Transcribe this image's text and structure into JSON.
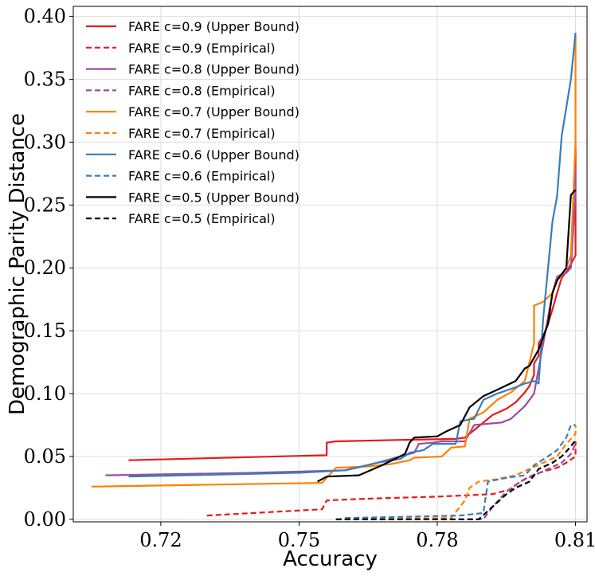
{
  "chart_data": {
    "type": "line",
    "title": "",
    "xlabel": "Accuracy",
    "ylabel": "Demographic Parity Distance",
    "xlim": [
      0.701,
      0.8125
    ],
    "ylim": [
      -0.002,
      0.408
    ],
    "xticks": [
      0.72,
      0.75,
      0.78,
      0.81
    ],
    "xtick_labels": [
      "0.72",
      "0.75",
      "0.78",
      "0.81"
    ],
    "yticks": [
      0.0,
      0.05,
      0.1,
      0.15,
      0.2,
      0.25,
      0.3,
      0.35,
      0.4
    ],
    "ytick_labels": [
      "0.00",
      "0.05",
      "0.10",
      "0.15",
      "0.20",
      "0.25",
      "0.30",
      "0.35",
      "0.40"
    ],
    "grid": true,
    "legend_position": "top-left",
    "series": [
      {
        "name": "FARE c=0.9 (Upper Bound)",
        "color": "#e41a1c",
        "dash": "solid",
        "points": [
          [
            0.713,
            0.047
          ],
          [
            0.756,
            0.051
          ],
          [
            0.756,
            0.061
          ],
          [
            0.758,
            0.062
          ],
          [
            0.77,
            0.063
          ],
          [
            0.784,
            0.064
          ],
          [
            0.786,
            0.065
          ],
          [
            0.792,
            0.083
          ],
          [
            0.795,
            0.088
          ],
          [
            0.797,
            0.093
          ],
          [
            0.799,
            0.101
          ],
          [
            0.8,
            0.106
          ],
          [
            0.801,
            0.115
          ],
          [
            0.801,
            0.124
          ],
          [
            0.802,
            0.13
          ],
          [
            0.802,
            0.14
          ],
          [
            0.803,
            0.146
          ],
          [
            0.804,
            0.155
          ],
          [
            0.805,
            0.167
          ],
          [
            0.806,
            0.18
          ],
          [
            0.807,
            0.192
          ],
          [
            0.808,
            0.197
          ],
          [
            0.809,
            0.203
          ],
          [
            0.81,
            0.21
          ],
          [
            0.81,
            0.3
          ]
        ]
      },
      {
        "name": "FARE c=0.9 (Empirical)",
        "color": "#e41a1c",
        "dash": "dashed",
        "points": [
          [
            0.73,
            0.003
          ],
          [
            0.755,
            0.008
          ],
          [
            0.756,
            0.015
          ],
          [
            0.762,
            0.016
          ],
          [
            0.77,
            0.017
          ],
          [
            0.78,
            0.018
          ],
          [
            0.786,
            0.019
          ],
          [
            0.792,
            0.02
          ],
          [
            0.796,
            0.024
          ],
          [
            0.798,
            0.03
          ],
          [
            0.8,
            0.034
          ],
          [
            0.803,
            0.038
          ],
          [
            0.806,
            0.041
          ],
          [
            0.808,
            0.045
          ],
          [
            0.81,
            0.05
          ],
          [
            0.81,
            0.062
          ]
        ]
      },
      {
        "name": "FARE c=0.8 (Upper Bound)",
        "color": "#984ea3",
        "dash": "solid",
        "points": [
          [
            0.708,
            0.035
          ],
          [
            0.74,
            0.037
          ],
          [
            0.76,
            0.039
          ],
          [
            0.765,
            0.043
          ],
          [
            0.77,
            0.048
          ],
          [
            0.775,
            0.053
          ],
          [
            0.776,
            0.06
          ],
          [
            0.779,
            0.061
          ],
          [
            0.781,
            0.062
          ],
          [
            0.786,
            0.062
          ],
          [
            0.788,
            0.075
          ],
          [
            0.794,
            0.077
          ],
          [
            0.796,
            0.08
          ],
          [
            0.799,
            0.09
          ],
          [
            0.801,
            0.1
          ],
          [
            0.802,
            0.12
          ],
          [
            0.803,
            0.14
          ],
          [
            0.804,
            0.16
          ],
          [
            0.805,
            0.18
          ],
          [
            0.806,
            0.193
          ],
          [
            0.807,
            0.195
          ],
          [
            0.808,
            0.196
          ],
          [
            0.809,
            0.2
          ],
          [
            0.81,
            0.26
          ],
          [
            0.81,
            0.28
          ]
        ]
      },
      {
        "name": "FARE c=0.8 (Empirical)",
        "color": "#984ea3",
        "dash": "dashed",
        "points": [
          [
            0.758,
            0.0
          ],
          [
            0.79,
            0.0
          ],
          [
            0.792,
            0.01
          ],
          [
            0.795,
            0.022
          ],
          [
            0.798,
            0.03
          ],
          [
            0.801,
            0.035
          ],
          [
            0.804,
            0.04
          ],
          [
            0.807,
            0.045
          ],
          [
            0.809,
            0.052
          ],
          [
            0.81,
            0.06
          ]
        ]
      },
      {
        "name": "FARE c=0.7 (Upper Bound)",
        "color": "#ff7f00",
        "dash": "solid",
        "points": [
          [
            0.705,
            0.026
          ],
          [
            0.755,
            0.029
          ],
          [
            0.758,
            0.041
          ],
          [
            0.765,
            0.042
          ],
          [
            0.77,
            0.044
          ],
          [
            0.774,
            0.047
          ],
          [
            0.775,
            0.049
          ],
          [
            0.781,
            0.05
          ],
          [
            0.783,
            0.057
          ],
          [
            0.786,
            0.058
          ],
          [
            0.787,
            0.08
          ],
          [
            0.79,
            0.085
          ],
          [
            0.793,
            0.095
          ],
          [
            0.796,
            0.101
          ],
          [
            0.799,
            0.11
          ],
          [
            0.8,
            0.125
          ],
          [
            0.801,
            0.14
          ],
          [
            0.801,
            0.17
          ],
          [
            0.803,
            0.173
          ],
          [
            0.805,
            0.18
          ],
          [
            0.806,
            0.19
          ],
          [
            0.808,
            0.2
          ],
          [
            0.809,
            0.21
          ],
          [
            0.81,
            0.3
          ],
          [
            0.81,
            0.385
          ]
        ]
      },
      {
        "name": "FARE c=0.7 (Empirical)",
        "color": "#ff7f00",
        "dash": "dashed",
        "points": [
          [
            0.758,
            0.0
          ],
          [
            0.783,
            0.001
          ],
          [
            0.786,
            0.015
          ],
          [
            0.787,
            0.025
          ],
          [
            0.789,
            0.03
          ],
          [
            0.793,
            0.032
          ],
          [
            0.797,
            0.035
          ],
          [
            0.8,
            0.04
          ],
          [
            0.803,
            0.045
          ],
          [
            0.806,
            0.05
          ],
          [
            0.808,
            0.06
          ],
          [
            0.81,
            0.068
          ],
          [
            0.81,
            0.075
          ]
        ]
      },
      {
        "name": "FARE c=0.6 (Upper Bound)",
        "color": "#377eb8",
        "dash": "solid",
        "points": [
          [
            0.713,
            0.034
          ],
          [
            0.75,
            0.037
          ],
          [
            0.76,
            0.039
          ],
          [
            0.767,
            0.045
          ],
          [
            0.772,
            0.048
          ],
          [
            0.774,
            0.053
          ],
          [
            0.777,
            0.055
          ],
          [
            0.779,
            0.06
          ],
          [
            0.784,
            0.06
          ],
          [
            0.785,
            0.078
          ],
          [
            0.788,
            0.08
          ],
          [
            0.79,
            0.095
          ],
          [
            0.793,
            0.1
          ],
          [
            0.797,
            0.105
          ],
          [
            0.799,
            0.108
          ],
          [
            0.801,
            0.11
          ],
          [
            0.802,
            0.108
          ],
          [
            0.803,
            0.16
          ],
          [
            0.805,
            0.237
          ],
          [
            0.806,
            0.257
          ],
          [
            0.807,
            0.305
          ],
          [
            0.809,
            0.35
          ],
          [
            0.81,
            0.387
          ]
        ]
      },
      {
        "name": "FARE c=0.6 (Empirical)",
        "color": "#377eb8",
        "dash": "dashed",
        "points": [
          [
            0.76,
            0.001
          ],
          [
            0.785,
            0.003
          ],
          [
            0.79,
            0.005
          ],
          [
            0.791,
            0.03
          ],
          [
            0.795,
            0.033
          ],
          [
            0.799,
            0.035
          ],
          [
            0.801,
            0.043
          ],
          [
            0.804,
            0.05
          ],
          [
            0.806,
            0.055
          ],
          [
            0.808,
            0.065
          ],
          [
            0.809,
            0.075
          ],
          [
            0.81,
            0.075
          ]
        ]
      },
      {
        "name": "FARE c=0.5 (Upper Bound)",
        "color": "#000000",
        "dash": "solid",
        "points": [
          [
            0.754,
            0.03
          ],
          [
            0.756,
            0.034
          ],
          [
            0.763,
            0.035
          ],
          [
            0.768,
            0.043
          ],
          [
            0.773,
            0.052
          ],
          [
            0.774,
            0.061
          ],
          [
            0.775,
            0.065
          ],
          [
            0.78,
            0.066
          ],
          [
            0.782,
            0.07
          ],
          [
            0.785,
            0.075
          ],
          [
            0.787,
            0.089
          ],
          [
            0.79,
            0.098
          ],
          [
            0.793,
            0.103
          ],
          [
            0.797,
            0.11
          ],
          [
            0.799,
            0.12
          ],
          [
            0.8,
            0.122
          ],
          [
            0.802,
            0.135
          ],
          [
            0.804,
            0.155
          ],
          [
            0.805,
            0.18
          ],
          [
            0.806,
            0.19
          ],
          [
            0.808,
            0.2
          ],
          [
            0.809,
            0.258
          ],
          [
            0.81,
            0.262
          ]
        ]
      },
      {
        "name": "FARE c=0.5 (Empirical)",
        "color": "#000000",
        "dash": "dashed",
        "points": [
          [
            0.758,
            0.0
          ],
          [
            0.789,
            0.0
          ],
          [
            0.792,
            0.01
          ],
          [
            0.795,
            0.02
          ],
          [
            0.797,
            0.025
          ],
          [
            0.8,
            0.03
          ],
          [
            0.802,
            0.04
          ],
          [
            0.805,
            0.045
          ],
          [
            0.807,
            0.05
          ],
          [
            0.809,
            0.058
          ],
          [
            0.81,
            0.063
          ]
        ]
      }
    ]
  }
}
